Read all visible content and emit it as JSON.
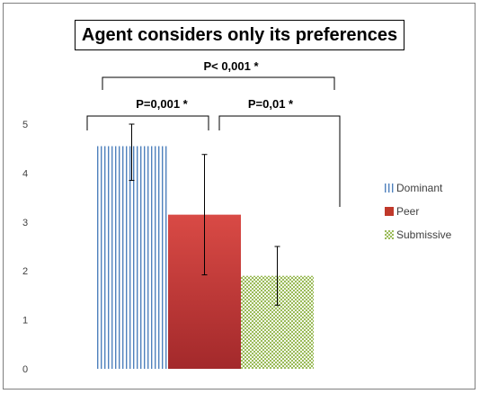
{
  "chart_data": {
    "type": "bar",
    "title": "Agent considers only its preferences",
    "categories": [
      "Dominant",
      "Peer",
      "Submissive"
    ],
    "values": [
      4.55,
      3.15,
      1.9
    ],
    "error_low": [
      3.85,
      1.92,
      1.3
    ],
    "error_high": [
      5.0,
      4.38,
      2.5
    ],
    "ylim": [
      0,
      5
    ],
    "yticks": [
      "0",
      "1",
      "2",
      "3",
      "4",
      "5"
    ],
    "grid": false,
    "legend_position": "right",
    "legend": [
      {
        "label": "Dominant",
        "pattern": "vertical-stripes",
        "color": "#4f81bd"
      },
      {
        "label": "Peer",
        "pattern": "solid-gradient",
        "color": "#c0392b"
      },
      {
        "label": "Submissive",
        "pattern": "checker",
        "color": "#9bbb59"
      }
    ],
    "annotations": [
      {
        "text": "P< 0,001 *",
        "between": [
          "Dominant",
          "Submissive"
        ]
      },
      {
        "text": "P=0,001 *",
        "between": [
          "Dominant",
          "Peer"
        ]
      },
      {
        "text": "P=0,01 *",
        "between": [
          "Peer",
          "Submissive"
        ]
      }
    ]
  }
}
